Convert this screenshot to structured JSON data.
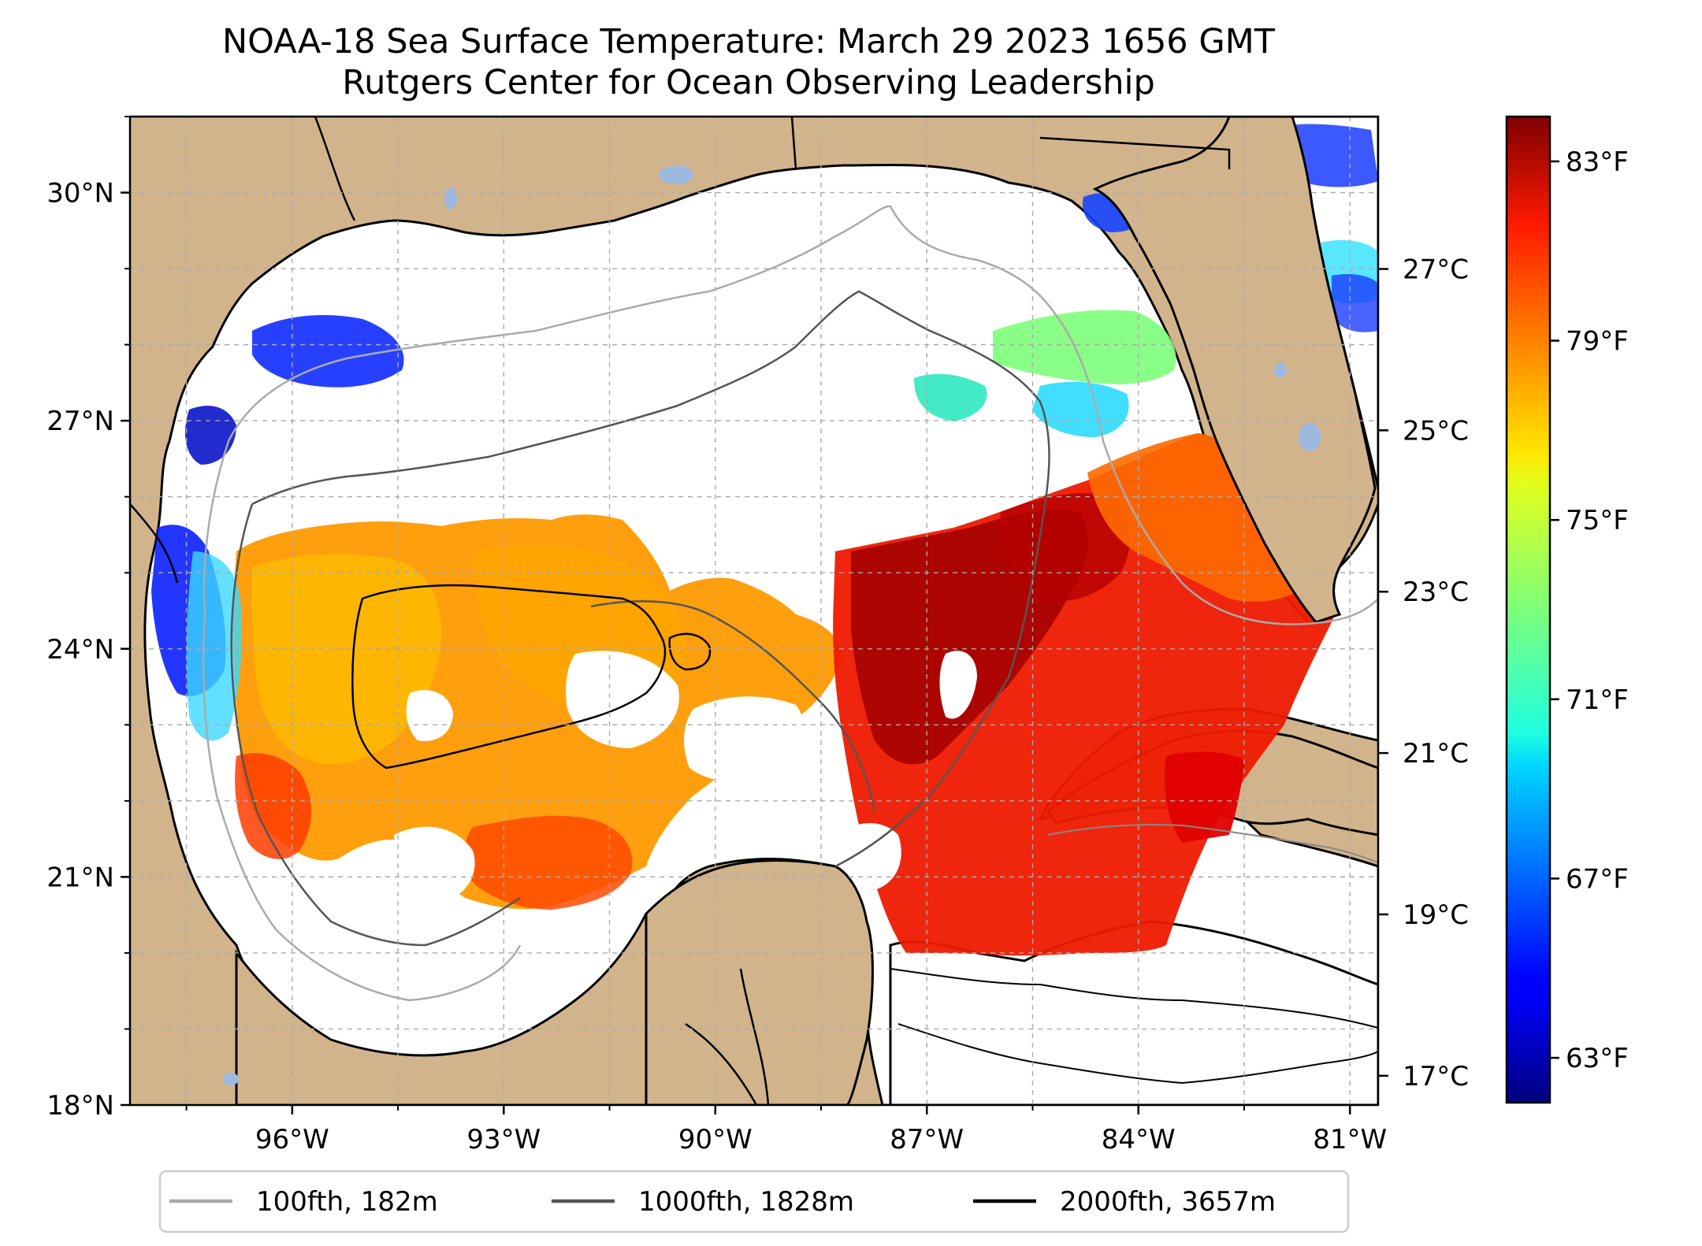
{
  "title": "NOAA-18 Sea Surface Temperature: March 29 2023 1656 GMT",
  "subtitle": "Rutgers Center for Ocean Observing Leadership",
  "map": {
    "lon_range": [
      -98.3,
      -80.6
    ],
    "lat_range": [
      18.0,
      31.0
    ],
    "lon_ticks": [
      {
        "value": -96,
        "label": "96°W"
      },
      {
        "value": -93,
        "label": "93°W"
      },
      {
        "value": -90,
        "label": "90°W"
      },
      {
        "value": -87,
        "label": "87°W"
      },
      {
        "value": -84,
        "label": "84°W"
      },
      {
        "value": -81,
        "label": "81°W"
      }
    ],
    "lat_ticks": [
      {
        "value": 30,
        "label": "30°N"
      },
      {
        "value": 27,
        "label": "27°N"
      },
      {
        "value": 24,
        "label": "24°N"
      },
      {
        "value": 21,
        "label": "21°N"
      },
      {
        "value": 18,
        "label": "18°N"
      }
    ],
    "gridlines": true,
    "land_color": "#d2b48c",
    "cloud_color": "#ffffff",
    "lake_color": "#9db9e0"
  },
  "colorbar": {
    "colormap": "jet",
    "range_f": [
      62,
      84
    ],
    "f_ticks": [
      {
        "value": 83,
        "label": "83°F"
      },
      {
        "value": 79,
        "label": "79°F"
      },
      {
        "value": 75,
        "label": "75°F"
      },
      {
        "value": 71,
        "label": "71°F"
      },
      {
        "value": 67,
        "label": "67°F"
      },
      {
        "value": 63,
        "label": "63°F"
      }
    ],
    "c_ticks": [
      {
        "value": 27,
        "label": "27°C"
      },
      {
        "value": 25,
        "label": "25°C"
      },
      {
        "value": 23,
        "label": "23°C"
      },
      {
        "value": 21,
        "label": "21°C"
      },
      {
        "value": 19,
        "label": "19°C"
      },
      {
        "value": 17,
        "label": "17°C"
      }
    ]
  },
  "legend": {
    "placement": "bottom-center",
    "items": [
      {
        "label": "100fth, 182m",
        "color": "#aaaaaa"
      },
      {
        "label": "1000fth, 1828m",
        "color": "#555555"
      },
      {
        "label": "2000fth, 3657m",
        "color": "#000000"
      }
    ]
  }
}
